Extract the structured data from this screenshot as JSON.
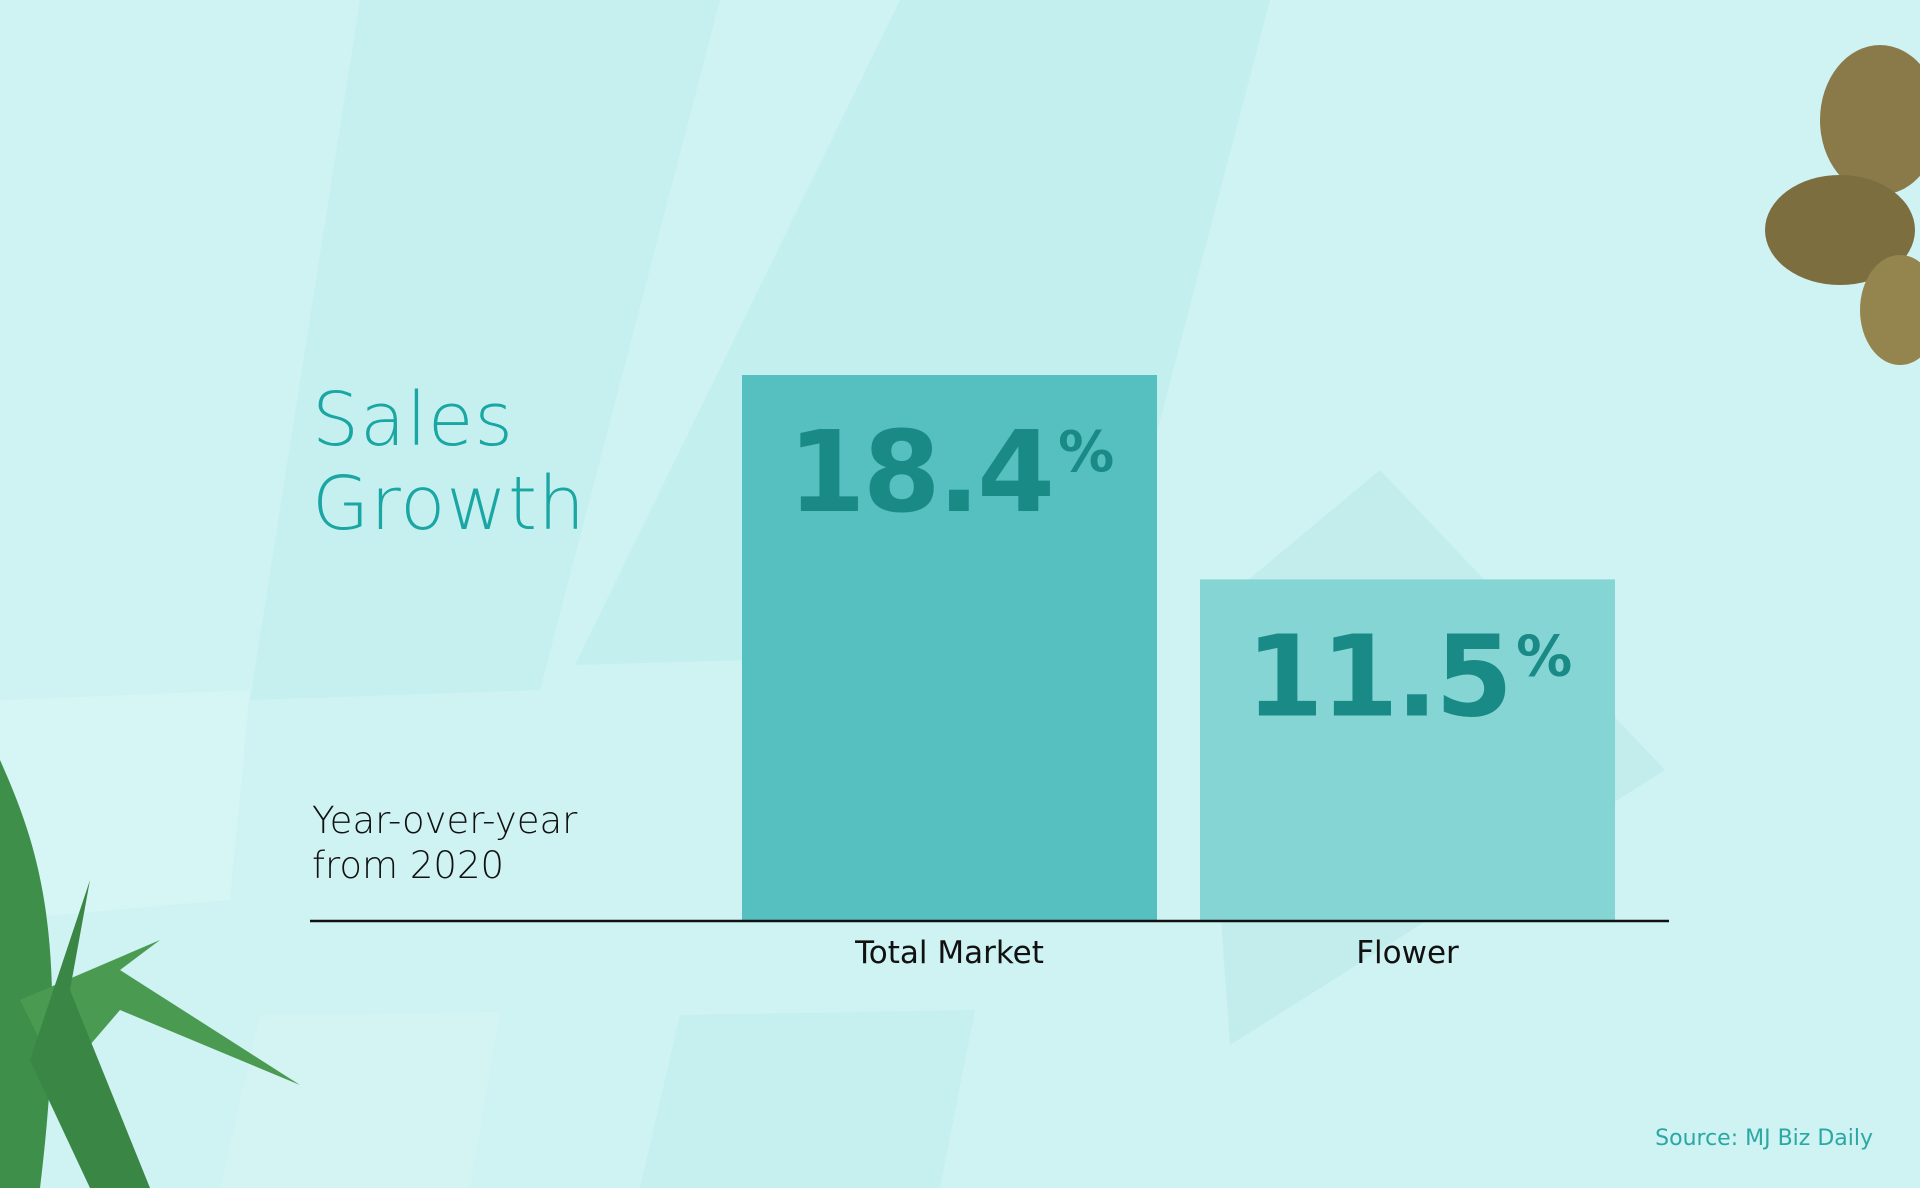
{
  "chart_data": {
    "type": "bar",
    "title": "Sales Growth",
    "subtitle": "Year-over-year from 2020",
    "categories": [
      "Total Market",
      "Flower"
    ],
    "values": [
      18.4,
      11.5
    ],
    "value_labels": [
      "18.4%",
      "11.5%"
    ],
    "colors": [
      "#56bfbf",
      "#86d5d5"
    ],
    "source": "Source: MJ Biz Daily"
  }
}
